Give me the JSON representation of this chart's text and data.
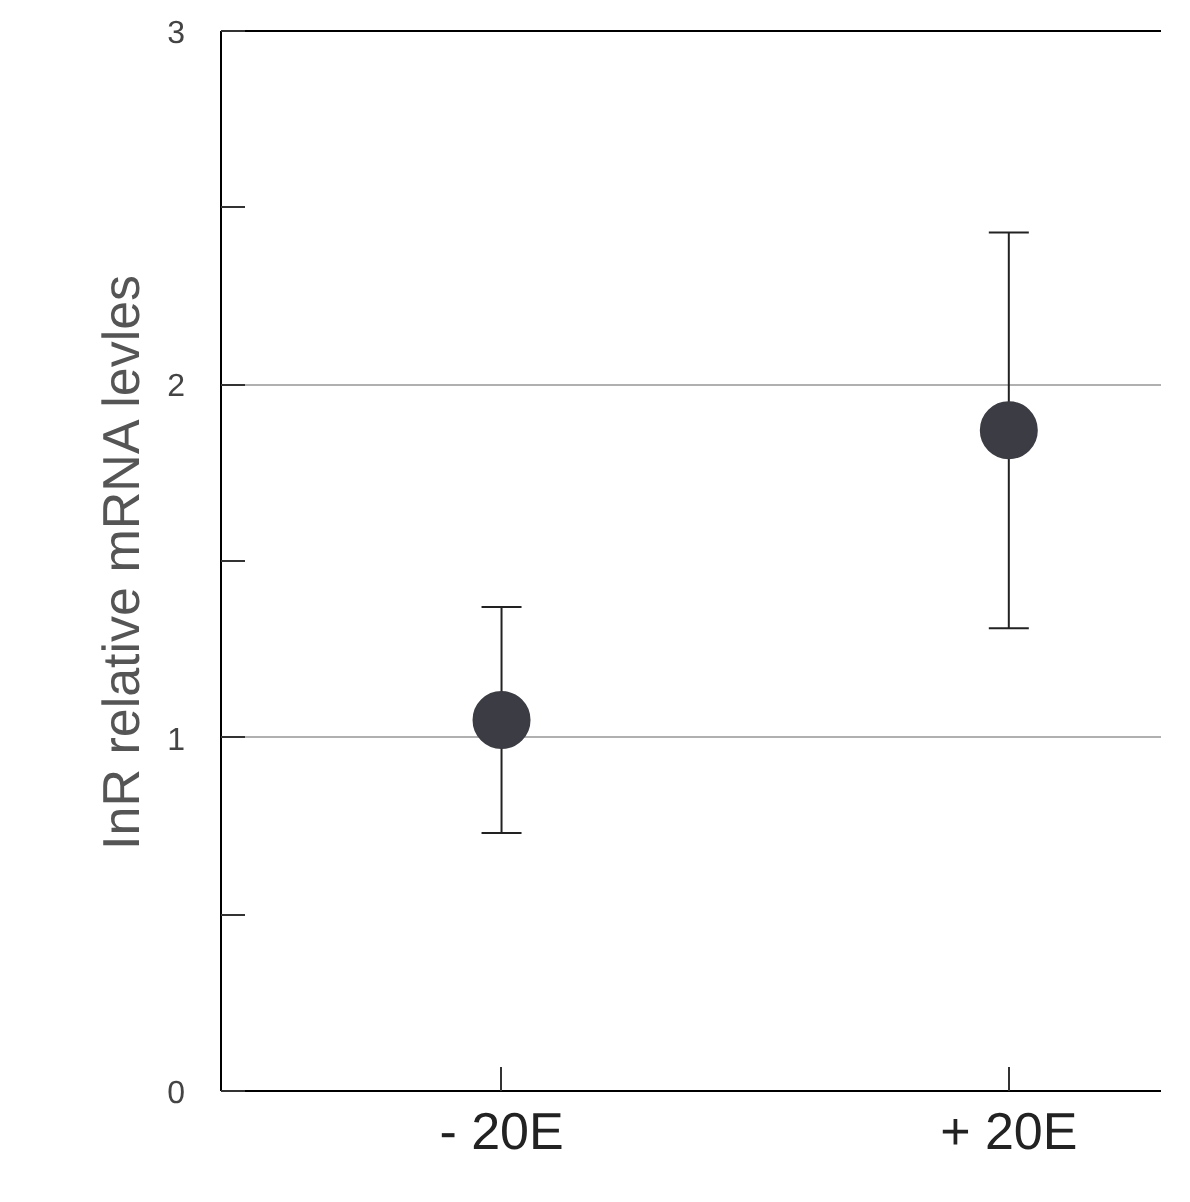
{
  "chart_data": {
    "type": "scatter",
    "ylabel": "InR relative mRNA levles",
    "categories": [
      "- 20E",
      "+ 20E"
    ],
    "values": [
      1.05,
      1.87
    ],
    "errors": [
      [
        0.73,
        1.37
      ],
      [
        1.31,
        2.43
      ]
    ],
    "color": "#3c3c44",
    "marker": "circle",
    "ylim": [
      0,
      3
    ],
    "yticks": [
      0,
      {
        "value": 0.5,
        "label": null
      },
      1,
      {
        "value": 1.5,
        "label": null
      },
      2,
      {
        "value": 2.5,
        "label": null
      },
      3
    ],
    "grid": "y"
  }
}
